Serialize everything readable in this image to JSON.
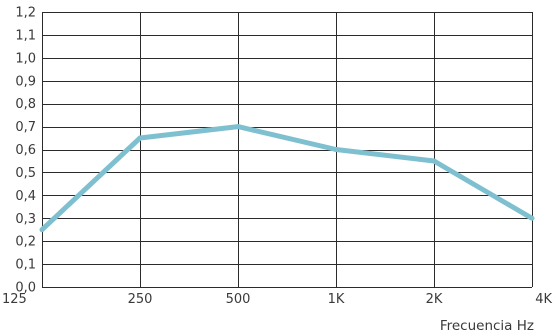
{
  "chart_data": {
    "type": "line",
    "categories": [
      "125",
      "250",
      "500",
      "1K",
      "2K",
      "4K"
    ],
    "series": [
      {
        "values": [
          0.25,
          0.65,
          0.7,
          0.6,
          0.55,
          0.3
        ]
      }
    ],
    "y_ticks": [
      "0,0",
      "0,1",
      "0,2",
      "0,3",
      "0,4",
      "0,5",
      "0,6",
      "0,7",
      "0,8",
      "0,9",
      "1,0",
      "1,1",
      "1,2"
    ],
    "ylim": [
      0,
      1.2
    ],
    "xlabel": "Frecuencia Hz",
    "ylabel": "",
    "grid": true,
    "line_color": "#7ec0cf",
    "grid_color": "#2b2b2b",
    "text_color": "#3a3a3a"
  }
}
